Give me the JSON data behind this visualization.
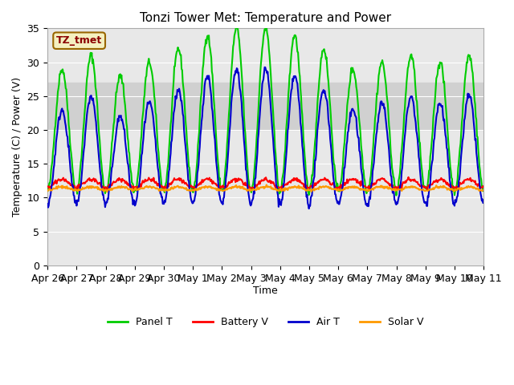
{
  "title": "Tonzi Tower Met: Temperature and Power",
  "xlabel": "Time",
  "ylabel": "Temperature (C) / Power (V)",
  "ylim": [
    0,
    35
  ],
  "background_color": "#ffffff",
  "plot_bg_color": "#e8e8e8",
  "shaded_band": [
    20,
    27
  ],
  "shaded_color": "#d0d0d0",
  "label_text": "TZ_tmet",
  "label_bg": "#f5f0c0",
  "label_fg": "#8b0000",
  "lines": {
    "panel_t": {
      "color": "#00cc00",
      "label": "Panel T",
      "lw": 1.5
    },
    "battery_v": {
      "color": "#ff0000",
      "label": "Battery V",
      "lw": 1.5
    },
    "air_t": {
      "color": "#0000cc",
      "label": "Air T",
      "lw": 1.5
    },
    "solar_v": {
      "color": "#ff9900",
      "label": "Solar V",
      "lw": 1.5
    }
  },
  "xtick_labels": [
    "Apr 26",
    "Apr 27",
    "Apr 28",
    "Apr 29",
    "Apr 30",
    "May 1",
    "May 2",
    "May 3",
    "May 4",
    "May 5",
    "May 6",
    "May 7",
    "May 8",
    "May 9",
    "May 10",
    "May 11"
  ],
  "n_days": 15,
  "pts_per_day": 48,
  "day_var": [
    0,
    2,
    -1,
    1,
    3,
    5,
    6,
    6,
    5,
    3,
    0,
    1,
    2,
    1,
    2,
    3
  ]
}
